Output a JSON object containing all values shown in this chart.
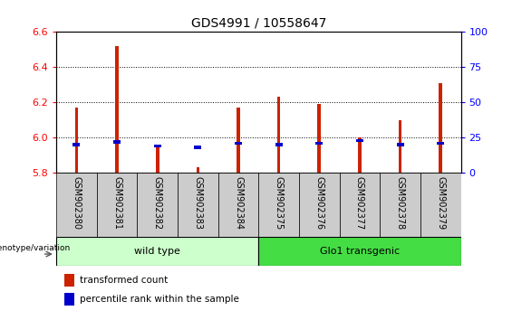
{
  "title": "GDS4991 / 10558647",
  "samples": [
    "GSM902380",
    "GSM902381",
    "GSM902382",
    "GSM902383",
    "GSM902384",
    "GSM902375",
    "GSM902376",
    "GSM902377",
    "GSM902378",
    "GSM902379"
  ],
  "transformed_count": [
    6.17,
    6.52,
    5.95,
    5.83,
    6.17,
    6.23,
    6.19,
    6.0,
    6.1,
    6.31
  ],
  "percentile_rank": [
    20,
    22,
    19,
    18,
    21,
    20,
    21,
    23,
    20,
    21
  ],
  "ymin": 5.8,
  "ymax": 6.6,
  "yticks": [
    5.8,
    6.0,
    6.2,
    6.4,
    6.6
  ],
  "right_yticks": [
    0,
    25,
    50,
    75,
    100
  ],
  "bar_color": "#cc2200",
  "percentile_color": "#0000cc",
  "group_labels": [
    "wild type",
    "Glo1 transgenic"
  ],
  "wt_color": "#ccffcc",
  "glo_color": "#44dd44",
  "legend_label_count": "transformed count",
  "legend_label_pct": "percentile rank within the sample",
  "genotype_label": "genotype/variation",
  "title_fontsize": 10,
  "tick_fontsize": 8,
  "label_fontsize": 7,
  "group_fontsize": 8
}
